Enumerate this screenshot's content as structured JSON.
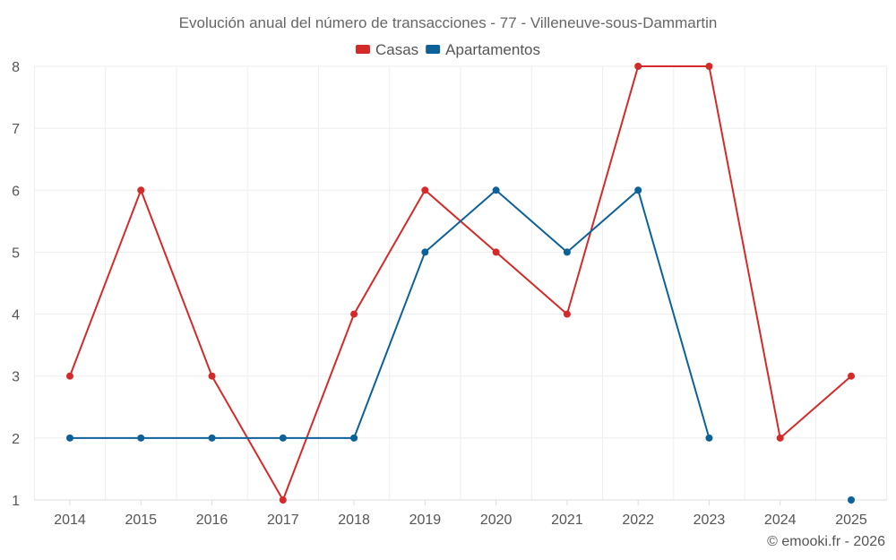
{
  "chart_data": {
    "type": "line",
    "title": "Evolución anual del número de transacciones - 77 - Villeneuve-sous-Dammartin",
    "xlabel": "",
    "ylabel": "",
    "categories": [
      "2014",
      "2015",
      "2016",
      "2017",
      "2018",
      "2019",
      "2020",
      "2021",
      "2022",
      "2023",
      "2024",
      "2025"
    ],
    "ylim": [
      1,
      8
    ],
    "yticks": [
      1,
      2,
      3,
      4,
      5,
      6,
      7,
      8
    ],
    "grid": true,
    "legend_position": "top-center",
    "series": [
      {
        "name": "Casas",
        "color": "#d42a2a",
        "values": [
          3,
          6,
          3,
          1,
          4,
          6,
          5,
          4,
          8,
          8,
          2,
          3
        ]
      },
      {
        "name": "Apartamentos",
        "color": "#0d6199",
        "values": [
          2,
          2,
          2,
          2,
          2,
          5,
          6,
          5,
          6,
          2,
          null,
          1
        ]
      }
    ]
  },
  "credit": "© emooki.fr - 2026"
}
